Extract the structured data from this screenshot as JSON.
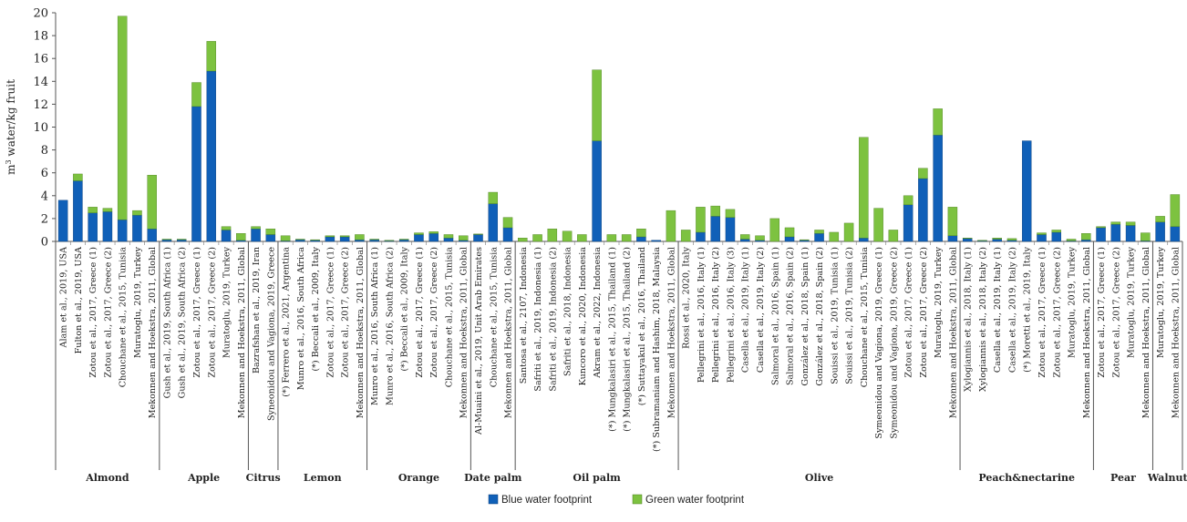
{
  "chart_data": {
    "type": "bar",
    "stacked": true,
    "ylabel": "m3 water/kg fruit",
    "ylabel_base": "m",
    "ylabel_sup": "3",
    "ylabel_rest": " water/kg fruit",
    "ylim": [
      0,
      20
    ],
    "yticks": [
      "0",
      "2",
      "4",
      "6",
      "8",
      "10",
      "12",
      "14",
      "16",
      "18",
      "20"
    ],
    "legend_position": "bottom-center",
    "series": [
      {
        "name": "Blue water footprint",
        "color": "#1060B8"
      },
      {
        "name": "Green water footprint",
        "color": "#7DC240"
      }
    ],
    "groups": [
      {
        "name": "Almond",
        "items": [
          {
            "label": "Alam et al., 2019, USA",
            "blue": 3.6,
            "green": 0
          },
          {
            "label": "Fulton et al., 2019, USA",
            "blue": 5.3,
            "green": 0.6
          },
          {
            "label": "Zotou et al., 2017, Greece (1)",
            "blue": 2.5,
            "green": 0.5
          },
          {
            "label": "Zotou et al., 2017, Greece (2)",
            "blue": 2.6,
            "green": 0.3
          },
          {
            "label": "Chouchane et al., 2015, Tunisia",
            "blue": 1.9,
            "green": 17.8
          },
          {
            "label": "Muratoglu, 2019, Turkey",
            "blue": 2.3,
            "green": 0.4
          },
          {
            "label": "Mekonnen and Hoekstra, 2011, Global",
            "blue": 1.1,
            "green": 4.7
          }
        ]
      },
      {
        "name": "Apple",
        "items": [
          {
            "label": "Gush et al., 2019, South Africa (1)",
            "blue": 0.15,
            "green": 0.05
          },
          {
            "label": "Gush et al., 2019, South Africa (2)",
            "blue": 0.15,
            "green": 0.05
          },
          {
            "label": "Zotou et al., 2017, Greece (1)",
            "blue": 11.8,
            "green": 2.1
          },
          {
            "label": "Zotou et al., 2017, Greece (2)",
            "blue": 14.9,
            "green": 2.6
          },
          {
            "label": "Muratoglu, 2019, Turkey",
            "blue": 1.0,
            "green": 0.3
          },
          {
            "label": "Mekonnen and Hoekstra, 2011, Global",
            "blue": 0.1,
            "green": 0.6
          }
        ]
      },
      {
        "name": "Citrus",
        "items": [
          {
            "label": "Bazrafshan et al., 2019, Iran",
            "blue": 1.1,
            "green": 0.2
          },
          {
            "label": "Syneonidou and Vagiona, 2019, Greece",
            "blue": 0.6,
            "green": 0.5
          }
        ]
      },
      {
        "name": "Lemon",
        "items": [
          {
            "label": "(*) Ferrero et al., 2021, Argentina",
            "blue": 0.05,
            "green": 0.45
          },
          {
            "label": "Munro et al., 2016, South Africa",
            "blue": 0.15,
            "green": 0.05
          },
          {
            "label": "(*) Beccali et al., 2009, Italy",
            "blue": 0.1,
            "green": 0.05
          },
          {
            "label": "Zotou et al., 2017, Greece (1)",
            "blue": 0.4,
            "green": 0.1
          },
          {
            "label": "Zotou et al., 2017, Greece (2)",
            "blue": 0.4,
            "green": 0.1
          },
          {
            "label": "Mekonnen and Hoekstra, 2011, Global",
            "blue": 0.15,
            "green": 0.45
          }
        ]
      },
      {
        "name": "Orange",
        "items": [
          {
            "label": "Munro et al., 2016, South Africa (1)",
            "blue": 0.15,
            "green": 0.05
          },
          {
            "label": "Munro et al., 2016, South Africa (2)",
            "blue": 0.05,
            "green": 0.05
          },
          {
            "label": "(*) Beccali et al., 2009, Italy",
            "blue": 0.15,
            "green": 0.05
          },
          {
            "label": "Zotou et al., 2017, Greece (1)",
            "blue": 0.6,
            "green": 0.15
          },
          {
            "label": "Zotou et al., 2017, Greece (2)",
            "blue": 0.7,
            "green": 0.15
          },
          {
            "label": "Chouchane et al., 2015, Tunisia",
            "blue": 0.3,
            "green": 0.3
          },
          {
            "label": "Mekonnen and Hoekstra, 2011, Global",
            "blue": 0.1,
            "green": 0.4
          }
        ]
      },
      {
        "name": "Date palm",
        "items": [
          {
            "label": "Al-Muaini et al., 2019, Unit Arab Emirates",
            "blue": 0.6,
            "green": 0.05
          },
          {
            "label": "Chouchane et al., 2015, Tunisia",
            "blue": 3.3,
            "green": 1.0
          },
          {
            "label": "Mekonnen and Hoekstra, 2011, Global",
            "blue": 1.2,
            "green": 0.9
          }
        ]
      },
      {
        "name": "Oil palm",
        "items": [
          {
            "label": "Santosa et al., 2107, Indonesia",
            "blue": 0,
            "green": 0.3
          },
          {
            "label": "Safriti et al., 2019, Indonesia (1)",
            "blue": 0,
            "green": 0.6
          },
          {
            "label": "Safriti et al., 2019, Indonesia (2)",
            "blue": 0,
            "green": 1.1
          },
          {
            "label": "Safriti et al., 2018, Indonesia",
            "blue": 0,
            "green": 0.9
          },
          {
            "label": "Kuncoro et al., 2020, Indonesia",
            "blue": 0,
            "green": 0.6
          },
          {
            "label": "Akram et al., 2022, Indonesia",
            "blue": 8.8,
            "green": 6.2
          },
          {
            "label": "(*) Mungkalasiri et al., 2015, Thailand (1)",
            "blue": 0,
            "green": 0.6
          },
          {
            "label": "(*) Mungkalasiri et al., 2015, Thailand (2)",
            "blue": 0,
            "green": 0.6
          },
          {
            "label": "(*) Suttayakul et al., 2016, Thailand",
            "blue": 0.4,
            "green": 0.7
          },
          {
            "label": "(*) Subramaniam and Hashim, 2018, Malaysia",
            "blue": 0.1,
            "green": 0
          },
          {
            "label": "Mekonnen and Hoekstra, 2011, Global",
            "blue": 0,
            "green": 2.7
          }
        ]
      },
      {
        "name": "Olive",
        "items": [
          {
            "label": "Rossi et al., 2020, Italy",
            "blue": 0,
            "green": 1.0
          },
          {
            "label": "Pellegrini et al., 2016, Italy (1)",
            "blue": 0.8,
            "green": 2.2
          },
          {
            "label": "Pellegrini et al., 2016, Italy (2)",
            "blue": 2.2,
            "green": 0.9
          },
          {
            "label": "Pellegrini et al., 2016, Italy (3)",
            "blue": 2.1,
            "green": 0.7
          },
          {
            "label": "Casella et al., 2019, Italy (1)",
            "blue": 0.2,
            "green": 0.4
          },
          {
            "label": "Casella et al., 2019, Italy (2)",
            "blue": 0.1,
            "green": 0.4
          },
          {
            "label": "Salmoral et al., 2016, Spain (1)",
            "blue": 0,
            "green": 2.0
          },
          {
            "label": "Salmoral et al., 2016, Spain (2)",
            "blue": 0.4,
            "green": 0.8
          },
          {
            "label": "González et al., 2018, Spain (1)",
            "blue": 0.1,
            "green": 0.05
          },
          {
            "label": "González et al., 2018, Spain (2)",
            "blue": 0.7,
            "green": 0.3
          },
          {
            "label": "Souissi et al., 2019, Tunisia (1)",
            "blue": 0,
            "green": 0.8
          },
          {
            "label": "Souissi et al., 2019, Tunisia (2)",
            "blue": 0,
            "green": 1.6
          },
          {
            "label": "Chouchane et al., 2015, Tunisia",
            "blue": 0.3,
            "green": 8.8
          },
          {
            "label": "Symeonidou and Vagiona, 2019, Greece (1)",
            "blue": 0,
            "green": 2.9
          },
          {
            "label": "Symeonidou and Vagiona, 2019, Greece (2)",
            "blue": 0,
            "green": 1.0
          },
          {
            "label": "Zotou et al., 2017, Greece (1)",
            "blue": 3.2,
            "green": 0.8
          },
          {
            "label": "Zotou et al., 2017, Greece (2)",
            "blue": 5.5,
            "green": 0.9
          },
          {
            "label": "Muratoglu, 2019, Turkey",
            "blue": 9.3,
            "green": 2.3
          },
          {
            "label": "Mekonnen and Hoekstra, 2011, Global",
            "blue": 0.5,
            "green": 2.5
          }
        ]
      },
      {
        "name": "Peach&nectarine",
        "items": [
          {
            "label": "Xylogiannis et al., 2018, Italy (1)",
            "blue": 0.25,
            "green": 0.05
          },
          {
            "label": "Xylogiannis et al., 2018, Italy (2)",
            "blue": 0.05,
            "green": 0.05
          },
          {
            "label": "Casella et al., 2019, Italy (1)",
            "blue": 0.2,
            "green": 0.1
          },
          {
            "label": "Casella et al., 2019, Italy (2)",
            "blue": 0.1,
            "green": 0.15
          },
          {
            "label": "(*) Moretti et al., 2019, Italy",
            "blue": 8.8,
            "green": 0
          },
          {
            "label": "Zotou et al., 2017, Greece (1)",
            "blue": 0.6,
            "green": 0.15
          },
          {
            "label": "Zotou et al., 2017, Greece (2)",
            "blue": 0.8,
            "green": 0.2
          },
          {
            "label": "Muratoglu, 2019, Turkey",
            "blue": 0.05,
            "green": 0.15
          },
          {
            "label": "Mekonnen and Hoekstra, 2011, Global",
            "blue": 0.15,
            "green": 0.55
          }
        ]
      },
      {
        "name": "Pear",
        "items": [
          {
            "label": "Zotou et al., 2017, Greece (1)",
            "blue": 1.2,
            "green": 0.1
          },
          {
            "label": "Zotou et al., 2017, Greece (2)",
            "blue": 1.5,
            "green": 0.2
          },
          {
            "label": "Muratoglu, 2019, Turkey",
            "blue": 1.4,
            "green": 0.3
          },
          {
            "label": "Mekonnen and Hoekstra, 2011, Global",
            "blue": 0.05,
            "green": 0.7
          }
        ]
      },
      {
        "name": "Walnut",
        "items": [
          {
            "label": "Muratoglu, 2019, Turkey",
            "blue": 1.7,
            "green": 0.5
          },
          {
            "label": "Mekonnen and Hoekstra, 2011, Global",
            "blue": 1.3,
            "green": 2.8
          }
        ]
      }
    ]
  }
}
